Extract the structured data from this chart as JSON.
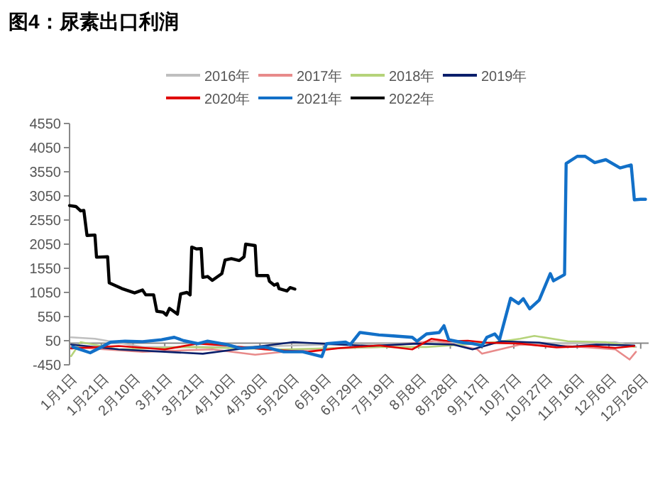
{
  "chart_data": {
    "type": "line",
    "title": "图4：尿素出口利润",
    "legend": "top",
    "xlim": [
      "--01-01",
      "--12-31"
    ],
    "ylim": [
      -450,
      4550
    ],
    "yticks": [
      -450,
      50,
      550,
      1050,
      1550,
      2050,
      2550,
      3050,
      3550,
      4050,
      4550
    ],
    "xticks": [
      {
        "value": "--01-01",
        "label": "1月1日"
      },
      {
        "value": "--01-21",
        "label": "1月21日"
      },
      {
        "value": "--02-10",
        "label": "2月10日"
      },
      {
        "value": "--03-01",
        "label": "3月1日"
      },
      {
        "value": "--03-21",
        "label": "3月21日"
      },
      {
        "value": "--04-10",
        "label": "4月10日"
      },
      {
        "value": "--04-30",
        "label": "4月30日"
      },
      {
        "value": "--05-20",
        "label": "5月20日"
      },
      {
        "value": "--06-09",
        "label": "6月9日"
      },
      {
        "value": "--06-29",
        "label": "6月29日"
      },
      {
        "value": "--07-19",
        "label": "7月19日"
      },
      {
        "value": "--08-08",
        "label": "8月8日"
      },
      {
        "value": "--08-28",
        "label": "8月28日"
      },
      {
        "value": "--09-17",
        "label": "9月17日"
      },
      {
        "value": "--10-07",
        "label": "10月7日"
      },
      {
        "value": "--10-27",
        "label": "10月27日"
      },
      {
        "value": "--11-16",
        "label": "11月16日"
      },
      {
        "value": "--12-06",
        "label": "12月6日"
      },
      {
        "value": "--12-26",
        "label": "12月26日"
      }
    ],
    "series": [
      {
        "name": "2016年",
        "color": "#bfbfbf",
        "x": [
          "--01-02",
          "--01-17",
          "--02-16",
          "--04-15",
          "--06-14",
          "--08-13",
          "--10-11",
          "--11-10",
          "--12-10",
          "--12-23"
        ],
        "values": [
          120,
          90,
          -80,
          -80,
          -30,
          -10,
          20,
          -10,
          20,
          -80
        ]
      },
      {
        "name": "2017年",
        "color": "#e88a8a",
        "x": [
          "--01-02",
          "--02-16",
          "--03-31",
          "--04-27",
          "--05-30",
          "--07-14",
          "--08-19",
          "--09-14",
          "--09-17",
          "--10-11",
          "--11-10",
          "--12-10",
          "--12-19",
          "--12-23"
        ],
        "values": [
          -80,
          -180,
          -130,
          -240,
          -130,
          -80,
          50,
          -130,
          -220,
          -30,
          -60,
          -130,
          -340,
          -180
        ]
      },
      {
        "name": "2018年",
        "color": "#b5d37a",
        "x": [
          "--01-02",
          "--01-08",
          "--02-01",
          "--03-16",
          "--05-15",
          "--07-14",
          "--08-13",
          "--09-05",
          "--09-26",
          "--10-11",
          "--10-20",
          "--11-10",
          "--12-04",
          "--12-22"
        ],
        "values": [
          -270,
          20,
          -130,
          -80,
          -130,
          -80,
          -80,
          -30,
          20,
          90,
          150,
          40,
          20,
          -80
        ]
      },
      {
        "name": "2019年",
        "color": "#0a1f6b",
        "x": [
          "--01-02",
          "--02-01",
          "--03-01",
          "--03-25",
          "--04-15",
          "--05-21",
          "--06-20",
          "--07-08",
          "--08-07",
          "--08-30",
          "--09-11",
          "--09-29",
          "--10-23",
          "--11-10",
          "--11-28",
          "--12-22"
        ],
        "values": [
          -30,
          -130,
          -180,
          -220,
          -130,
          20,
          -30,
          -60,
          -10,
          -30,
          -130,
          40,
          10,
          -80,
          -30,
          -50
        ]
      },
      {
        "name": "2020年",
        "color": "#e00000",
        "x": [
          "--01-02",
          "--02-01",
          "--03-01",
          "--03-22",
          "--04-09",
          "--05-03",
          "--05-30",
          "--06-20",
          "--07-14",
          "--08-04",
          "--08-16",
          "--08-27",
          "--09-08",
          "--09-20",
          "--10-11",
          "--11-03",
          "--11-25",
          "--12-10",
          "--12-22"
        ],
        "values": [
          -110,
          -60,
          -130,
          -10,
          -50,
          -130,
          -180,
          -100,
          -50,
          -130,
          90,
          40,
          50,
          10,
          -10,
          -90,
          -60,
          -100,
          -60
        ]
      },
      {
        "name": "2021年",
        "color": "#1270c8",
        "x": [
          "--01-03",
          "--01-14",
          "--01-20",
          "--01-27",
          "--02-05",
          "--02-16",
          "--02-28",
          "--03-07",
          "--03-13",
          "--03-22",
          "--03-28",
          "--04-09",
          "--04-18",
          "--05-03",
          "--05-15",
          "--05-27",
          "--06-08",
          "--06-11",
          "--06-23",
          "--06-26",
          "--07-02",
          "--07-14",
          "--07-23",
          "--08-04",
          "--08-07",
          "--08-13",
          "--08-21",
          "--08-24",
          "--08-27",
          "--09-05",
          "--09-11",
          "--09-17",
          "--09-20",
          "--09-25",
          "--09-28",
          "--10-05",
          "--10-10",
          "--10-13",
          "--10-17",
          "--10-23",
          "--10-30",
          "--11-01",
          "--11-08",
          "--11-09",
          "--11-16",
          "--11-21",
          "--11-27",
          "--12-04",
          "--12-13",
          "--12-20",
          "--12-22",
          "--12-26",
          "--12-29"
        ],
        "values": [
          -80,
          -200,
          -100,
          20,
          40,
          30,
          70,
          120,
          50,
          -10,
          40,
          -30,
          -110,
          -80,
          -180,
          -180,
          -280,
          -10,
          20,
          -30,
          220,
          170,
          150,
          120,
          40,
          190,
          220,
          360,
          70,
          10,
          -10,
          -50,
          120,
          190,
          70,
          930,
          820,
          920,
          710,
          890,
          1440,
          1290,
          1420,
          3720,
          3870,
          3870,
          3740,
          3800,
          3630,
          3690,
          2970,
          2980,
          2980
        ]
      },
      {
        "name": "2022年",
        "color": "#000000",
        "x": [
          "--01-01",
          "--01-05",
          "--01-08",
          "--01-10",
          "--01-12",
          "--01-17",
          "--01-18",
          "--01-25",
          "--01-26",
          "--02-03",
          "--02-11",
          "--02-16",
          "--02-18",
          "--02-23",
          "--02-25",
          "--02-29",
          "--03-02",
          "--03-04",
          "--03-07",
          "--03-09",
          "--03-11",
          "--03-15",
          "--03-17",
          "--03-18",
          "--03-21",
          "--03-24",
          "--03-25",
          "--03-28",
          "--03-31",
          "--04-06",
          "--04-08",
          "--04-12",
          "--04-17",
          "--04-20",
          "--04-21",
          "--04-27",
          "--04-28",
          "--05-05",
          "--05-06",
          "--05-09",
          "--05-11",
          "--05-12",
          "--05-17",
          "--05-19",
          "--05-22"
        ],
        "values": [
          2850,
          2830,
          2740,
          2750,
          2230,
          2240,
          1780,
          1790,
          1250,
          1130,
          1040,
          1100,
          1000,
          1000,
          660,
          640,
          580,
          720,
          650,
          600,
          1020,
          1050,
          1000,
          1990,
          1950,
          1960,
          1360,
          1380,
          1300,
          1440,
          1720,
          1750,
          1710,
          1790,
          2050,
          2020,
          1400,
          1400,
          1280,
          1200,
          1230,
          1130,
          1080,
          1150,
          1120
        ]
      }
    ]
  }
}
